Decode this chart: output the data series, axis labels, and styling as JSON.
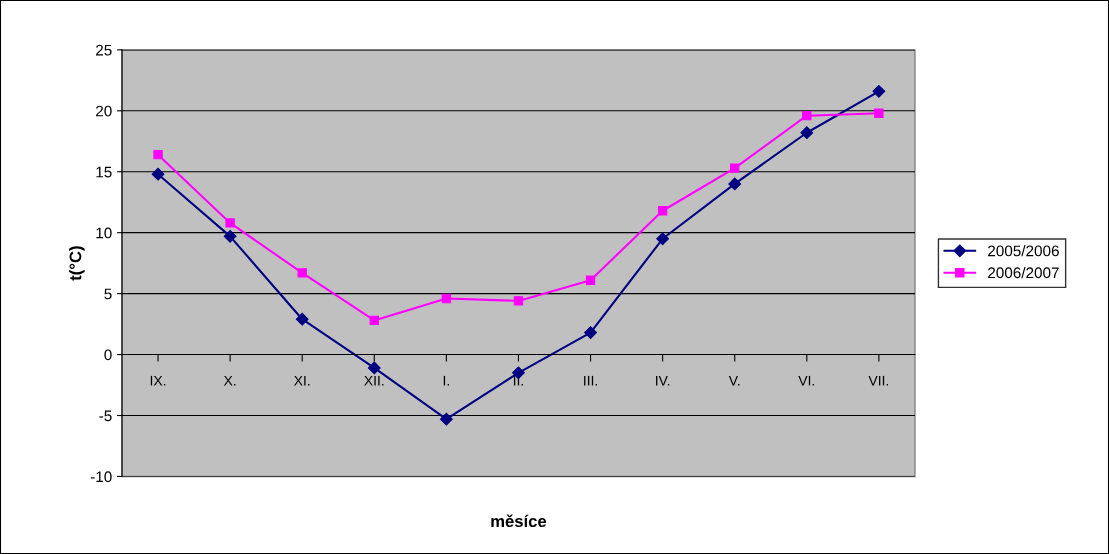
{
  "chart_data": {
    "type": "line",
    "xlabel": "měsíce",
    "ylabel": "t(°C)",
    "categories": [
      "IX.",
      "X.",
      "XI.",
      "XII.",
      "I.",
      "II.",
      "III.",
      "IV.",
      "V.",
      "VI.",
      "VII."
    ],
    "series": [
      {
        "name": "2005/2006",
        "color": "#000080",
        "marker": "diamond",
        "values": [
          14.8,
          9.7,
          2.9,
          -1.1,
          -5.3,
          -1.5,
          1.8,
          9.5,
          14.0,
          18.2,
          21.6
        ]
      },
      {
        "name": "2006/2007",
        "color": "#ff00ff",
        "marker": "square",
        "values": [
          16.4,
          10.8,
          6.7,
          2.8,
          4.6,
          4.4,
          6.1,
          11.8,
          15.3,
          19.6,
          19.8
        ]
      }
    ],
    "ylim": [
      -10,
      25
    ],
    "yticks": [
      -10,
      -5,
      0,
      5,
      10,
      15,
      20,
      25
    ],
    "grid": "y",
    "legend": "right"
  }
}
